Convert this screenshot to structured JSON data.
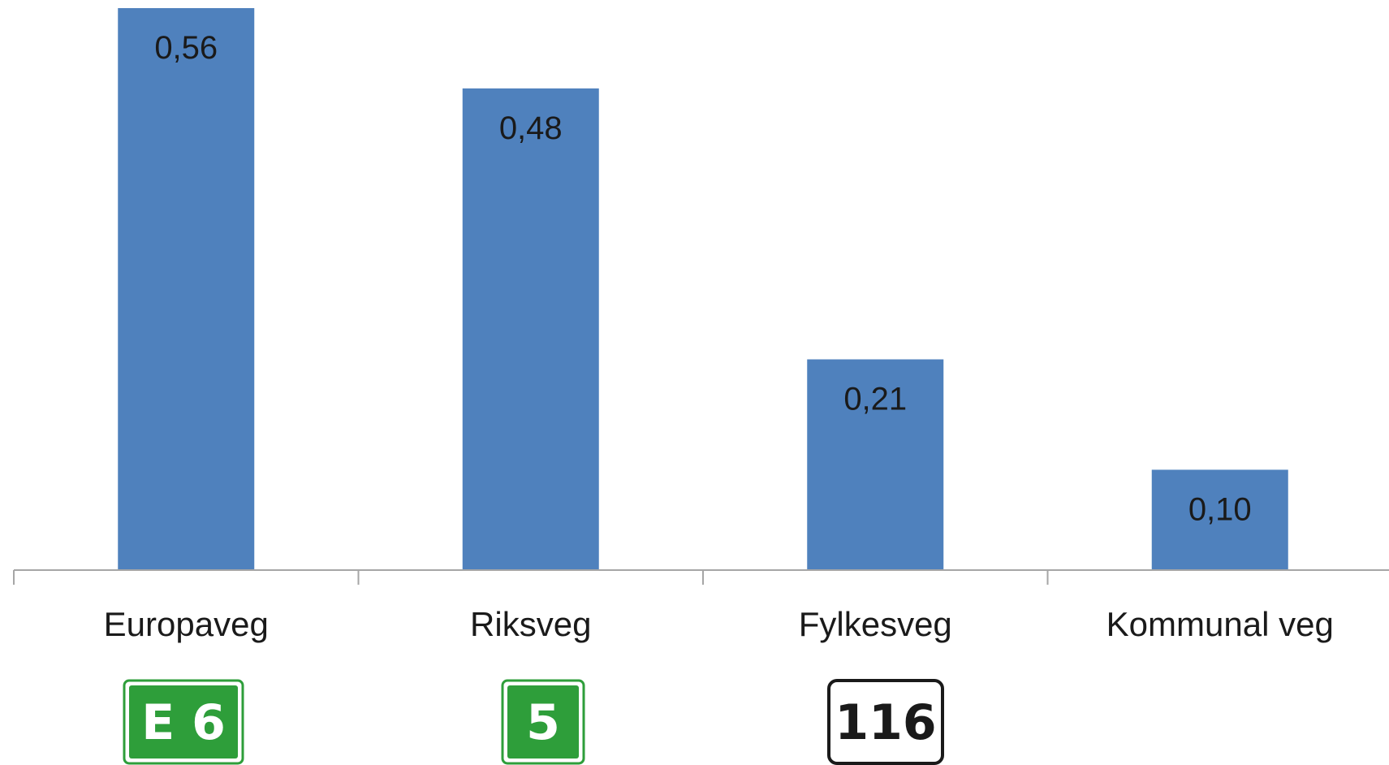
{
  "chart_data": {
    "type": "bar",
    "categories": [
      "Europaveg",
      "Riksveg",
      "Fylkesveg",
      "Kommunal veg"
    ],
    "values": [
      0.56,
      0.48,
      0.21,
      0.1
    ],
    "value_labels": [
      "0,56",
      "0,48",
      "0,21",
      "0,10"
    ],
    "title": "",
    "xlabel": "",
    "ylabel": "",
    "ylim": [
      0,
      0.56
    ],
    "grid": false,
    "legend": "none",
    "bar_color": "#4f81bd",
    "axis_color": "#a6a6a6"
  },
  "road_signs": [
    {
      "text": "E 6",
      "style": "green",
      "background": "#2e9e3a",
      "text_color": "#ffffff"
    },
    {
      "text": "5",
      "style": "green",
      "background": "#2e9e3a",
      "text_color": "#ffffff"
    },
    {
      "text": "116",
      "style": "white",
      "background": "#ffffff",
      "text_color": "#1a1a1a"
    }
  ]
}
